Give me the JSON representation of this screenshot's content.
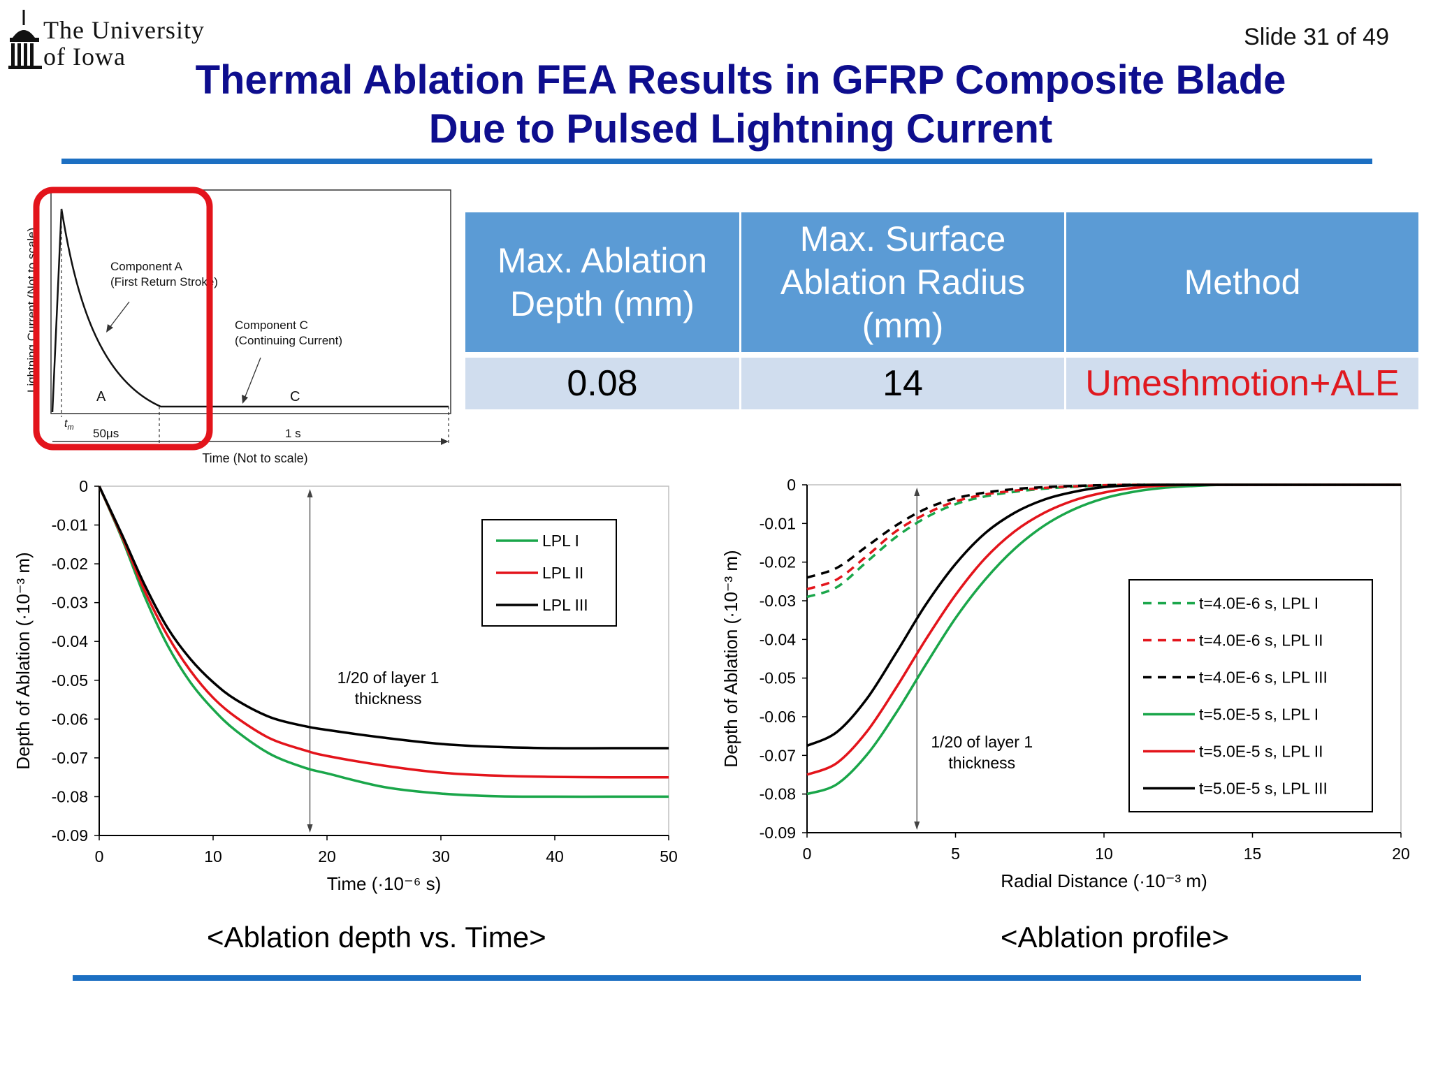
{
  "logo": {
    "line1": "The University",
    "line2": "of Iowa"
  },
  "slide_number": "Slide 31 of 49",
  "title_line1": "Thermal Ablation FEA Results in GFRP Composite Blade",
  "title_line2": "Due to Pulsed Lightning Current",
  "colors": {
    "title": "#0e0e8e",
    "rule": "#1c6fc2",
    "table_header": "#5b9bd5",
    "table_row": "#d0ddee",
    "method_text": "#e0191f",
    "highlight": "#e3141b",
    "lpl1": "#1aa64a",
    "lpl2": "#e3141b",
    "lpl3": "#000000"
  },
  "results_table": {
    "headers": [
      "Max. Ablation Depth (mm)",
      "Max. Surface Ablation Radius (mm)",
      "Method"
    ],
    "rows": [
      [
        "0.08",
        "14",
        "Umeshmotion+ALE"
      ]
    ]
  },
  "waveform": {
    "ylabel": "Lightning Current (Not to scale)",
    "xlabel": "Time (Not to scale)",
    "labels": {
      "comp_a_1": "Component A",
      "comp_a_2": "(First Return Stroke)",
      "comp_c_1": "Component C",
      "comp_c_2": "(Continuing Current)",
      "a": "A",
      "c": "C",
      "tm_t": "t",
      "tm_sub": "m",
      "dur1": "50μs",
      "dur2": "1 s"
    }
  },
  "chart_data": [
    {
      "type": "line",
      "title": "",
      "xlabel": "Time (·10⁻⁶ s)",
      "ylabel": "Depth of Ablation (·10⁻³ m)",
      "xlim": [
        0,
        50
      ],
      "ylim": [
        -0.09,
        0
      ],
      "xticks": [
        "0",
        "10",
        "20",
        "30",
        "40",
        "50"
      ],
      "yticks": [
        "0",
        "-0.01",
        "-0.02",
        "-0.03",
        "-0.04",
        "-0.05",
        "-0.06",
        "-0.07",
        "-0.08",
        "-0.09"
      ],
      "grid": false,
      "legend_position": "top-right",
      "annotation": {
        "line1": "1/20 of layer 1",
        "line2": "thickness",
        "x": 18.5
      },
      "x": [
        0,
        2,
        4,
        6,
        8,
        10,
        12,
        15,
        18,
        20,
        25,
        30,
        35,
        40,
        45,
        50
      ],
      "series": [
        {
          "name": "LPL I",
          "color": "#1aa64a",
          "dash": false,
          "values": [
            0,
            -0.0135,
            -0.0285,
            -0.041,
            -0.0505,
            -0.0575,
            -0.063,
            -0.069,
            -0.0725,
            -0.074,
            -0.0775,
            -0.0792,
            -0.0799,
            -0.08,
            -0.08,
            -0.08
          ]
        },
        {
          "name": "LPL II",
          "color": "#e3141b",
          "dash": false,
          "values": [
            0,
            -0.013,
            -0.027,
            -0.0385,
            -0.0475,
            -0.0545,
            -0.0595,
            -0.065,
            -0.068,
            -0.0695,
            -0.072,
            -0.0738,
            -0.0746,
            -0.0749,
            -0.075,
            -0.075
          ]
        },
        {
          "name": "LPL III",
          "color": "#000000",
          "dash": false,
          "values": [
            0,
            -0.0125,
            -0.0255,
            -0.0365,
            -0.0445,
            -0.0505,
            -0.055,
            -0.0595,
            -0.0618,
            -0.0628,
            -0.0648,
            -0.0664,
            -0.0672,
            -0.0675,
            -0.0675,
            -0.0675
          ]
        }
      ]
    },
    {
      "type": "line",
      "title": "",
      "xlabel": "Radial Distance (·10⁻³ m)",
      "ylabel": "Depth of Ablation (·10⁻³ m)",
      "xlim": [
        0,
        20
      ],
      "ylim": [
        -0.09,
        0
      ],
      "xticks": [
        "0",
        "5",
        "10",
        "15",
        "20"
      ],
      "yticks": [
        "0",
        "-0.01",
        "-0.02",
        "-0.03",
        "-0.04",
        "-0.05",
        "-0.06",
        "-0.07",
        "-0.08",
        "-0.09"
      ],
      "grid": false,
      "legend_position": "right",
      "annotation": {
        "line1": "1/20 of layer 1",
        "line2": "thickness",
        "x": 3.7
      },
      "x": [
        0,
        1,
        2,
        3,
        4,
        5,
        6,
        7,
        8,
        9,
        10,
        11,
        12,
        13,
        14,
        16,
        18,
        20
      ],
      "series": [
        {
          "name": "t=4.0E-6 s, LPL I",
          "color": "#1aa64a",
          "dash": true,
          "values": [
            -0.029,
            -0.0265,
            -0.02,
            -0.0135,
            -0.0085,
            -0.005,
            -0.003,
            -0.0018,
            -0.001,
            -0.0005,
            -0.0002,
            0,
            0,
            0,
            0,
            0,
            0,
            0
          ]
        },
        {
          "name": "t=4.0E-6 s, LPL II",
          "color": "#e3141b",
          "dash": true,
          "values": [
            -0.027,
            -0.0245,
            -0.0185,
            -0.012,
            -0.0075,
            -0.0043,
            -0.0025,
            -0.0015,
            -0.0008,
            -0.0004,
            -0.0001,
            0,
            0,
            0,
            0,
            0,
            0,
            0
          ]
        },
        {
          "name": "t=4.0E-6 s, LPL III",
          "color": "#000000",
          "dash": true,
          "values": [
            -0.024,
            -0.0215,
            -0.016,
            -0.0105,
            -0.0062,
            -0.0035,
            -0.002,
            -0.0011,
            -0.0006,
            -0.0003,
            -0.0001,
            0,
            0,
            0,
            0,
            0,
            0,
            0
          ]
        },
        {
          "name": "t=5.0E-5 s, LPL I",
          "color": "#1aa64a",
          "dash": false,
          "values": [
            -0.08,
            -0.0775,
            -0.07,
            -0.059,
            -0.0465,
            -0.0345,
            -0.0245,
            -0.0165,
            -0.0105,
            -0.0063,
            -0.0035,
            -0.0018,
            -0.0008,
            -0.0003,
            0,
            0,
            0,
            0
          ]
        },
        {
          "name": "t=5.0E-5 s, LPL II",
          "color": "#e3141b",
          "dash": false,
          "values": [
            -0.075,
            -0.072,
            -0.064,
            -0.0525,
            -0.04,
            -0.0285,
            -0.019,
            -0.012,
            -0.0072,
            -0.004,
            -0.002,
            -0.0008,
            -0.0002,
            0,
            0,
            0,
            0,
            0
          ]
        },
        {
          "name": "t=5.0E-5 s, LPL III",
          "color": "#000000",
          "dash": false,
          "values": [
            -0.0675,
            -0.064,
            -0.0555,
            -0.0435,
            -0.031,
            -0.0205,
            -0.0125,
            -0.0072,
            -0.0038,
            -0.0018,
            -0.0006,
            -0.0001,
            0,
            0,
            0,
            0,
            0,
            0
          ]
        }
      ]
    }
  ],
  "captions": {
    "left": "<Ablation depth vs. Time>",
    "right": "<Ablation profile>"
  }
}
